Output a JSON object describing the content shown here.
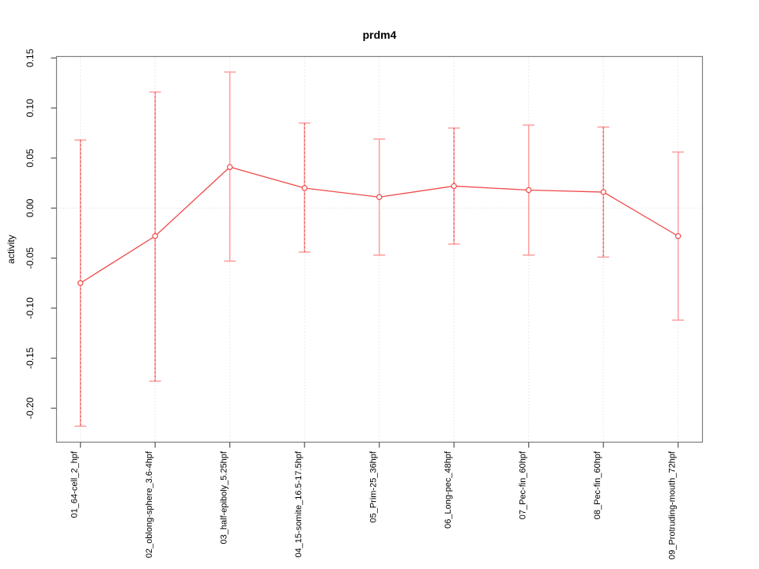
{
  "chart_data": {
    "type": "line",
    "title": "prdm4",
    "xlabel": "",
    "ylabel": "activity",
    "categories": [
      "01_64-cell_2_hpf",
      "02_oblong-sphere_3.6-4hpf",
      "03_half-epiboly_5.25hpf",
      "04_15-somite_16.5-17.5hpf",
      "05_Prim-25_36hpf",
      "06_Long-pec_48hpf",
      "07_Pec-fin_60hpf",
      "08_Pec-fin_60hpf",
      "09_Protruding-mouth_72hpf"
    ],
    "series": [
      {
        "name": "prdm4 activity",
        "values": [
          -0.075,
          -0.028,
          0.041,
          0.02,
          0.011,
          0.022,
          0.018,
          0.016,
          -0.028
        ],
        "upper": [
          0.068,
          0.116,
          0.136,
          0.085,
          0.069,
          0.08,
          0.083,
          0.081,
          0.056
        ],
        "lower": [
          -0.218,
          -0.173,
          -0.053,
          -0.044,
          -0.047,
          -0.036,
          -0.047,
          -0.049,
          -0.112
        ]
      }
    ],
    "yticks": [
      -0.2,
      -0.15,
      -0.1,
      -0.05,
      0,
      0.05,
      0.1,
      0.15
    ],
    "ytick_labels": [
      "-0.20",
      "-0.15",
      "-0.10",
      "-0.05",
      "0.00",
      "0.05",
      "0.10",
      "0.15"
    ],
    "ylim": [
      -0.234,
      0.151
    ],
    "grid": {
      "vertical": "dotted line at every category",
      "horizontal": "dotted line at y = 0"
    },
    "legend": "none",
    "marker": "open-circle",
    "colors": {
      "line": "#f04b4b",
      "marker": "#f04b4b",
      "error_bar": "#ff9d9d",
      "error_bar_dash": "#e25353",
      "grid": "#d4d4d4",
      "box": "#7e7e7e",
      "tick": "#555555",
      "text": "#000000",
      "background": "#ffffff"
    }
  }
}
